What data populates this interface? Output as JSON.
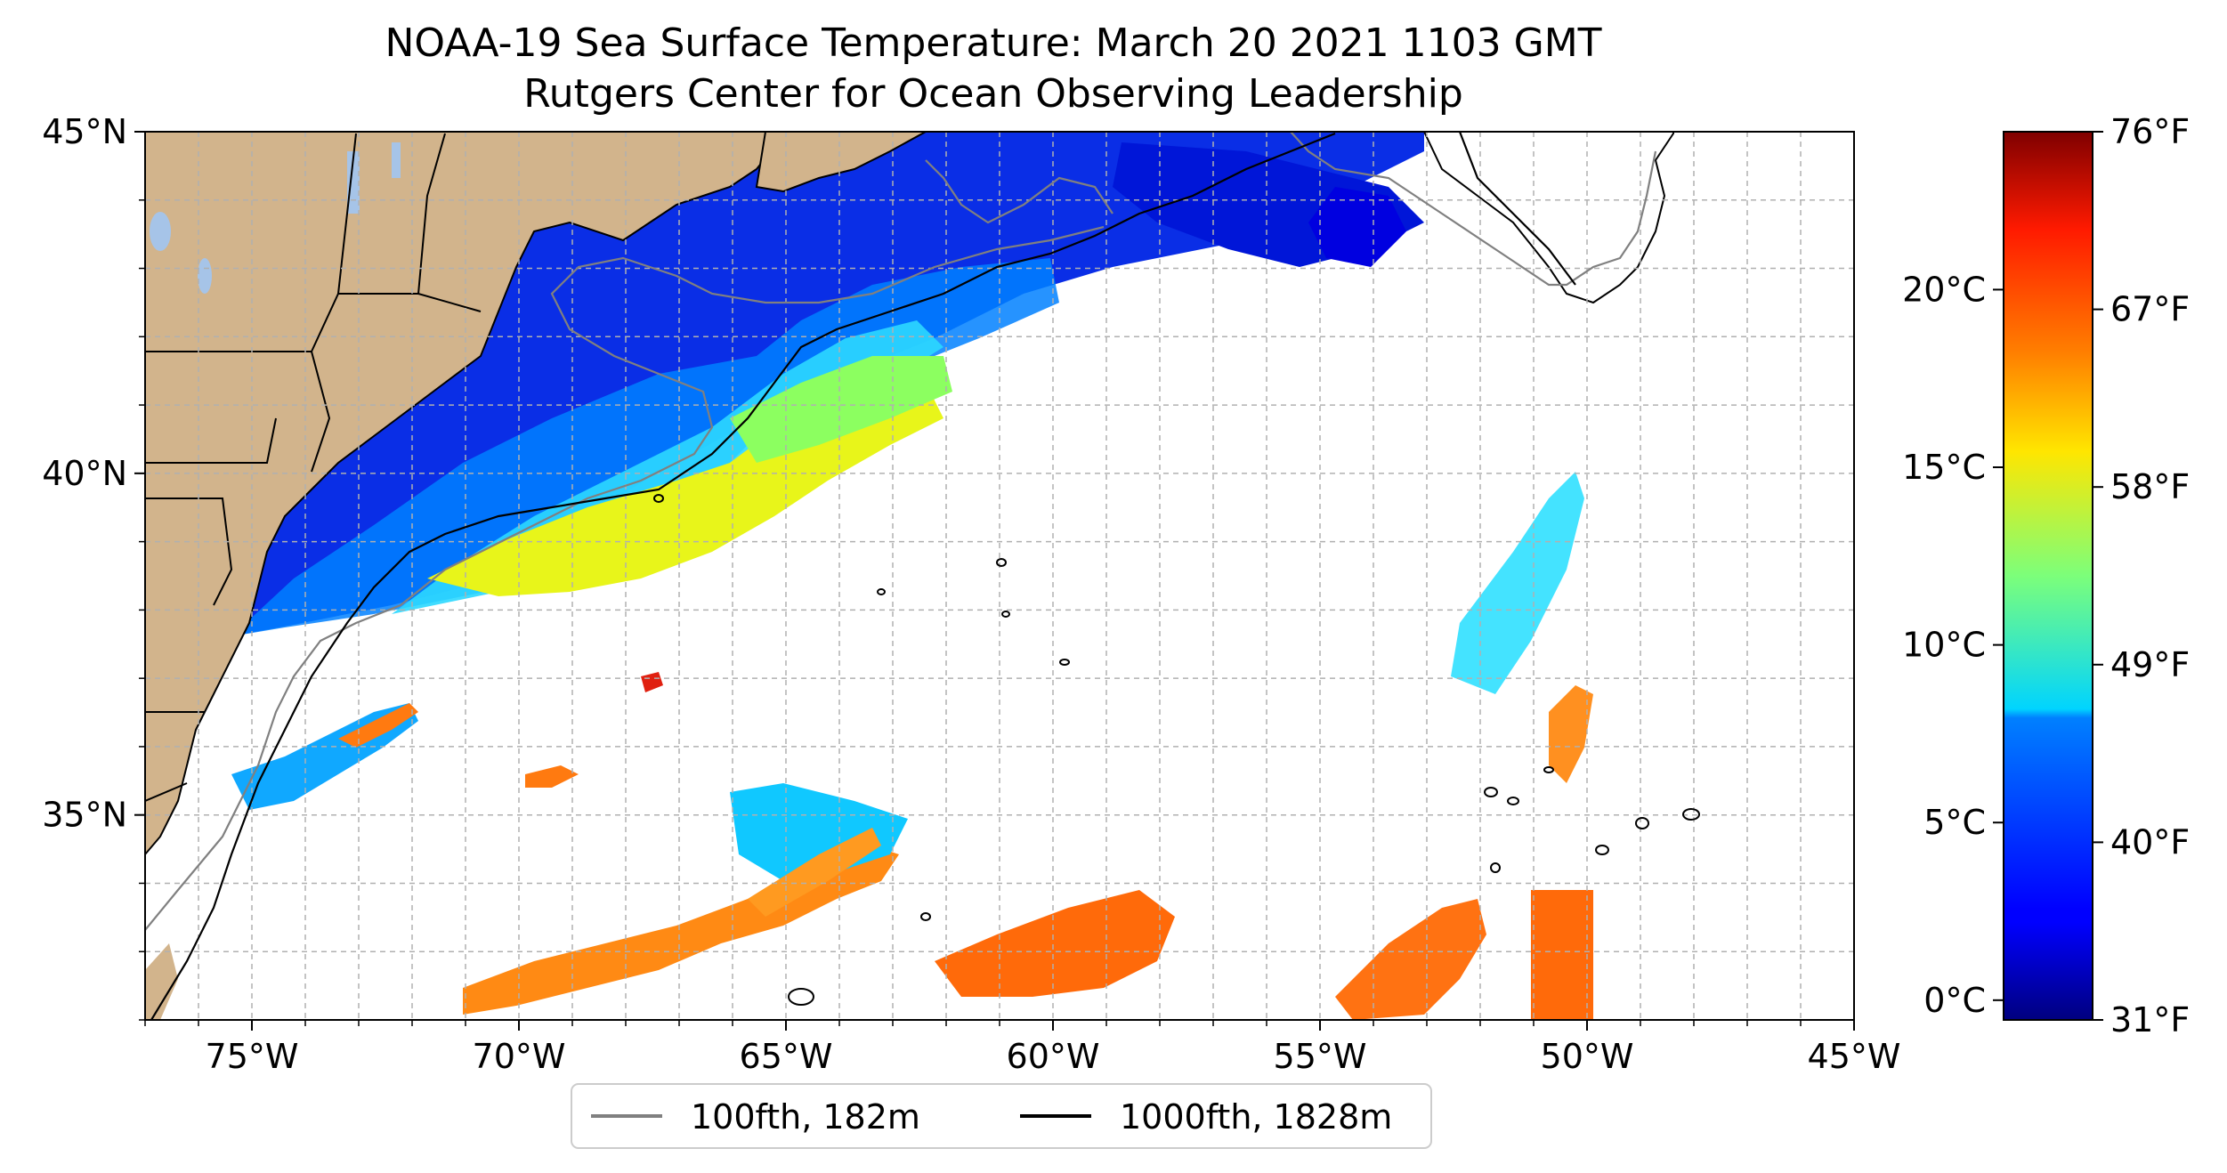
{
  "map": {
    "title_line1": "NOAA-19 Sea Surface Temperature: March 20 2021 1103 GMT",
    "title_line2": "Rutgers Center for Ocean Observing Leadership",
    "lon_range": [
      -77,
      -45
    ],
    "lat_range": [
      32,
      45
    ],
    "lon_ticks": [
      {
        "value": -75,
        "label": "75°W"
      },
      {
        "value": -70,
        "label": "70°W"
      },
      {
        "value": -65,
        "label": "65°W"
      },
      {
        "value": -60,
        "label": "60°W"
      },
      {
        "value": -55,
        "label": "55°W"
      },
      {
        "value": -50,
        "label": "50°W"
      },
      {
        "value": -45,
        "label": "45°W"
      }
    ],
    "lat_ticks": [
      {
        "value": 45,
        "label": "45°N"
      },
      {
        "value": 40,
        "label": "40°N"
      },
      {
        "value": 35,
        "label": "35°N"
      }
    ],
    "gridlines": true,
    "colors": {
      "land": "#d2b48c",
      "lakes": "#a6c4e8",
      "bathy_100fth": "#808080",
      "bathy_1000fth": "#000000",
      "grid": "#b0b0b0"
    }
  },
  "colorbar": {
    "colormap": "jet",
    "celsius_ticks": [
      {
        "value": 20,
        "label": "20°C"
      },
      {
        "value": 15,
        "label": "15°C"
      },
      {
        "value": 10,
        "label": "10°C"
      },
      {
        "value": 5,
        "label": "5°C"
      },
      {
        "value": 0,
        "label": "0°C"
      }
    ],
    "fahrenheit_ticks": [
      {
        "value": 76,
        "label": "76°F"
      },
      {
        "value": 67,
        "label": "67°F"
      },
      {
        "value": 58,
        "label": "58°F"
      },
      {
        "value": 49,
        "label": "49°F"
      },
      {
        "value": 40,
        "label": "40°F"
      },
      {
        "value": 31,
        "label": "31°F"
      }
    ]
  },
  "legend": {
    "items": [
      {
        "label": "100fth, 182m",
        "color": "#808080"
      },
      {
        "label": "1000fth, 1828m",
        "color": "#000000"
      }
    ]
  }
}
